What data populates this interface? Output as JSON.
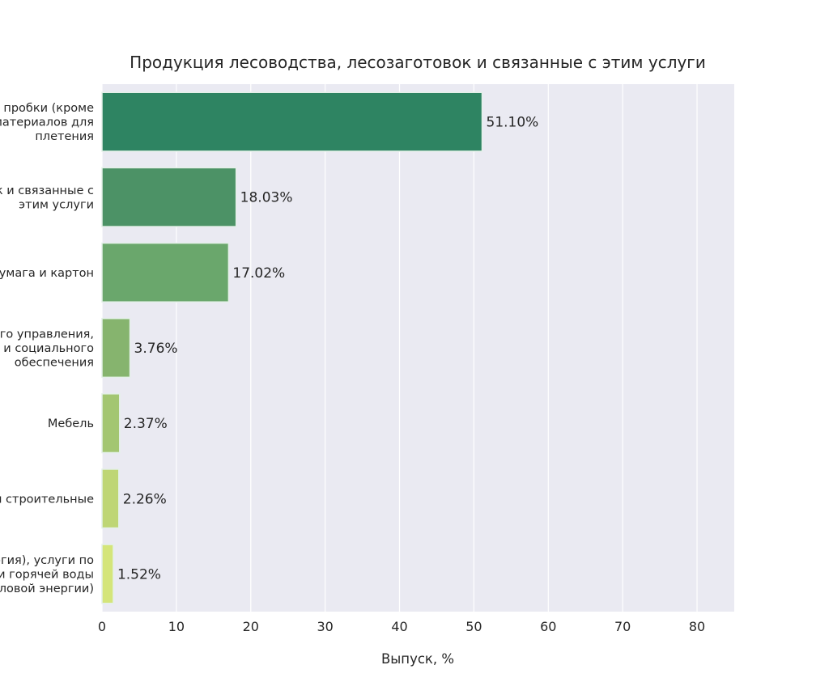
{
  "chart_data": {
    "type": "bar",
    "orientation": "horizontal",
    "title": "Продукция лесоводства, лесозаготовок и связанные с этим услуги",
    "xlabel": "Выпуск, %",
    "ylabel": "",
    "xlim": [
      0,
      85
    ],
    "xticks": [
      0,
      10,
      20,
      30,
      40,
      50,
      60,
      70,
      80
    ],
    "grid": true,
    "categories": [
      [
        "и пробки (кроме",
        "материалов для",
        "плетения"
      ],
      [
        "к и связанные с",
        "этим услуги"
      ],
      [
        "бумага и картон"
      ],
      [
        "ого управления,",
        "и и социального",
        "обеспечения"
      ],
      [
        "Мебель"
      ],
      [
        "ы строительные"
      ],
      [
        "ргия), услуги по",
        "и горячей воды",
        "пловой энергии)"
      ]
    ],
    "values": [
      51.1,
      18.03,
      17.02,
      3.76,
      2.37,
      2.26,
      1.52
    ],
    "value_labels": [
      "51.10%",
      "18.03%",
      "17.02%",
      "3.76%",
      "2.37%",
      "2.26%",
      "1.52%"
    ],
    "colors": [
      "#2e8462",
      "#4c9266",
      "#6aa76c",
      "#86b46e",
      "#a3c672",
      "#bed675",
      "#d4e57a"
    ],
    "plot_background": "#eaeaf2",
    "grid_color": "#ffffff"
  }
}
